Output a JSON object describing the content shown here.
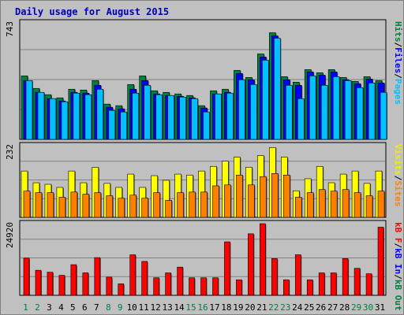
{
  "chart_data": {
    "type": "bar",
    "title": "Daily usage for August 2015",
    "categories": [
      "1",
      "2",
      "3",
      "4",
      "5",
      "6",
      "7",
      "8",
      "9",
      "10",
      "11",
      "12",
      "13",
      "14",
      "15",
      "16",
      "17",
      "18",
      "19",
      "20",
      "21",
      "22",
      "23",
      "24",
      "25",
      "26",
      "27",
      "28",
      "29",
      "30",
      "31"
    ],
    "weekend_days": [
      "1",
      "2",
      "8",
      "9",
      "15",
      "16",
      "22",
      "23",
      "29",
      "30"
    ],
    "panels": [
      {
        "name": "hits-files-pages",
        "max_label": "743",
        "ylim": [
          0,
          743
        ],
        "right_labels": [
          {
            "text": "Hits",
            "color": "#008040"
          },
          {
            "text": "/",
            "color": "#000000"
          },
          {
            "text": "Files",
            "color": "#0000ff"
          },
          {
            "text": "/",
            "color": "#000000"
          },
          {
            "text": "Pages",
            "color": "#00c0ff"
          }
        ],
        "series": [
          {
            "name": "Hits",
            "color": "#008040",
            "values": [
              405,
              325,
              285,
              265,
              320,
              315,
              375,
              225,
              215,
              350,
              405,
              310,
              300,
              290,
              280,
              215,
              310,
              320,
              440,
              395,
              545,
              680,
              400,
              365,
              445,
              425,
              445,
              395,
              370,
              400,
              375
            ]
          },
          {
            "name": "Files",
            "color": "#0000ff",
            "values": [
              375,
              300,
              260,
              245,
              300,
              295,
              345,
              205,
              195,
              320,
              375,
              290,
              280,
              275,
              265,
              200,
              290,
              300,
              420,
              380,
              525,
              660,
              380,
              345,
              430,
              410,
              430,
              380,
              355,
              385,
              360
            ]
          },
          {
            "name": "Pages",
            "color": "#00c0ff",
            "values": [
              375,
              300,
              260,
              240,
              295,
              285,
              320,
              185,
              175,
              295,
              345,
              285,
              280,
              270,
              260,
              175,
              290,
              295,
              380,
              350,
              505,
              645,
              345,
              260,
              405,
              345,
              400,
              375,
              330,
              360,
              300
            ]
          }
        ]
      },
      {
        "name": "visits-sites",
        "max_label": "232",
        "ylim": [
          0,
          232
        ],
        "right_labels": [
          {
            "text": "Visits",
            "color": "#f0f000"
          },
          {
            "text": "/",
            "color": "#000000"
          },
          {
            "text": "Sites",
            "color": "#ff8000"
          }
        ],
        "series": [
          {
            "name": "Visits",
            "color": "#ffff00",
            "values": [
              150,
              112,
              107,
              97,
              150,
              112,
              162,
              110,
              97,
              140,
              97,
              135,
              120,
              140,
              137,
              150,
              165,
              182,
              195,
              162,
              200,
              226,
              195,
              86,
              125,
              165,
              112,
              140,
              150,
              110,
              150
            ]
          },
          {
            "name": "Sites",
            "color": "#ff8000",
            "values": [
              85,
              80,
              80,
              65,
              82,
              75,
              80,
              70,
              62,
              72,
              62,
              80,
              55,
              80,
              82,
              82,
              102,
              105,
              137,
              105,
              132,
              142,
              137,
              65,
              80,
              90,
              85,
              90,
              80,
              70,
              85
            ]
          }
        ]
      },
      {
        "name": "kbytes",
        "max_label": "24920",
        "ylim": [
          0,
          24920
        ],
        "right_labels": [
          {
            "text": "kB F",
            "color": "#ff0000"
          },
          {
            "text": "/",
            "color": "#000000"
          },
          {
            "text": "kB In",
            "color": "#0000ff"
          },
          {
            "text": "/",
            "color": "#000000"
          },
          {
            "text": "kB Out",
            "color": "#008040"
          }
        ],
        "series": [
          {
            "name": "kB F",
            "color": "#ff0000",
            "values": [
              12960,
              8720,
              8040,
              6960,
              10660,
              7820,
              13120,
              6320,
              4000,
              14100,
              11800,
              6100,
              7800,
              9800,
              6100,
              6100,
              6100,
              18600,
              5400,
              21400,
              24920,
              12780,
              5400,
              14100,
              5400,
              7800,
              7800,
              12780,
              9400,
              7500,
              23700
            ]
          }
        ]
      }
    ]
  }
}
